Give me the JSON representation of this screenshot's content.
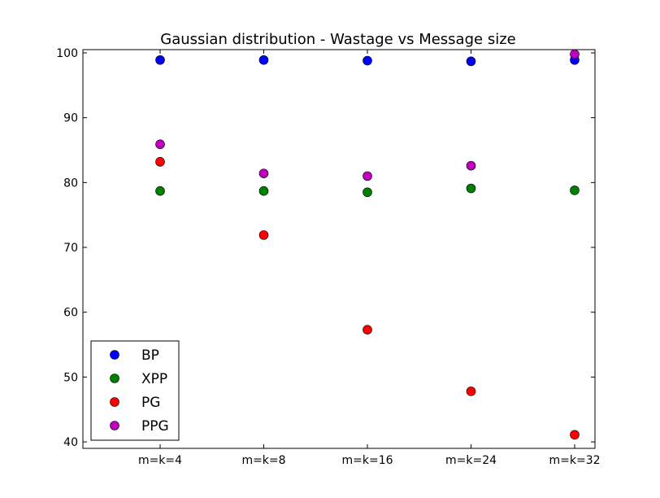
{
  "chart_data": {
    "type": "scatter",
    "title": "Gaussian distribution - Wastage vs Message size",
    "xlabel": "",
    "ylabel": "",
    "categories": [
      "m=k=4",
      "m=k=8",
      "m=k=16",
      "m=k=24",
      "m=k=32"
    ],
    "ylim": [
      39,
      100.5
    ],
    "yticks": [
      40,
      50,
      60,
      70,
      80,
      90,
      100
    ],
    "grid": false,
    "legend_position": "lower-left",
    "series": [
      {
        "name": "BP",
        "color": "#0000ff",
        "values": [
          98.9,
          98.9,
          98.8,
          98.7,
          98.9
        ]
      },
      {
        "name": "XPP",
        "color": "#008000",
        "values": [
          78.7,
          78.7,
          78.5,
          79.1,
          78.8
        ]
      },
      {
        "name": "PG",
        "color": "#ff0000",
        "values": [
          83.2,
          71.9,
          57.3,
          47.8,
          41.1
        ]
      },
      {
        "name": "PPG",
        "color": "#bf00bf",
        "values": [
          85.9,
          81.4,
          81.0,
          82.6,
          99.8
        ]
      }
    ]
  }
}
